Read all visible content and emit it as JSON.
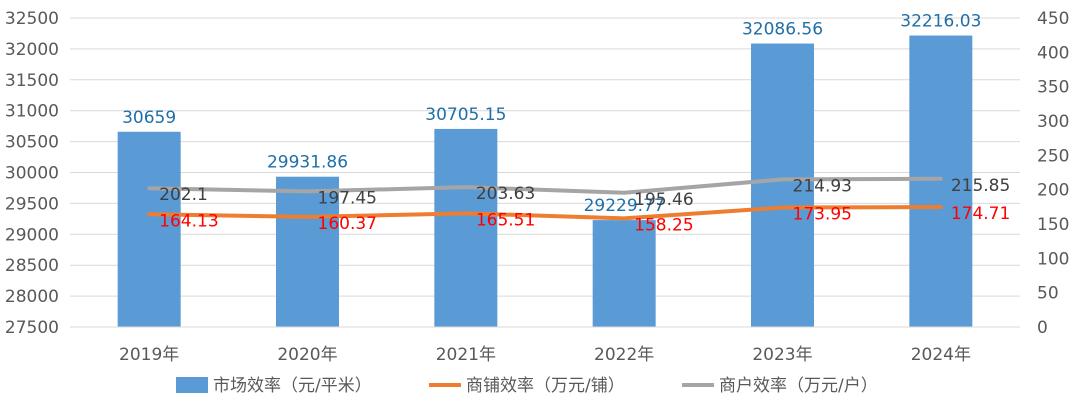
{
  "chart_data": {
    "type": "bar",
    "categories": [
      "2019年",
      "2020年",
      "2021年",
      "2022年",
      "2023年",
      "2024年"
    ],
    "series": [
      {
        "name": "市场效率（元/平米）",
        "kind": "bar",
        "axis": "left",
        "values": [
          30659,
          29931.86,
          30705.15,
          29229.77,
          32086.56,
          32216.03
        ],
        "labels": [
          "30659",
          "29931.86",
          "30705.15",
          "29229.77",
          "32086.56",
          "32216.03"
        ],
        "color": "#5b9bd5",
        "label_color": "#1f6fa8"
      },
      {
        "name": "商铺效率（万元/铺）",
        "kind": "line",
        "axis": "right",
        "values": [
          164.13,
          160.37,
          165.51,
          158.25,
          173.95,
          174.71
        ],
        "labels": [
          "164.13",
          "160.37",
          "165.51",
          "158.25",
          "173.95",
          "174.71"
        ],
        "color": "#ed7d31",
        "label_color": "#ff0000"
      },
      {
        "name": "商户效率（万元/户）",
        "kind": "line",
        "axis": "right",
        "values": [
          202.1,
          197.45,
          203.63,
          195.46,
          214.93,
          215.85
        ],
        "labels": [
          "202.1",
          "197.45",
          "203.63",
          "195.46",
          "214.93",
          "215.85"
        ],
        "color": "#a5a5a5",
        "label_color": "#404040"
      }
    ],
    "y_left": {
      "ylim": [
        27500,
        32500
      ],
      "ticks": [
        "27500",
        "28000",
        "28500",
        "29000",
        "29500",
        "30000",
        "30500",
        "31000",
        "31500",
        "32000",
        "32500"
      ]
    },
    "y_right": {
      "ylim": [
        0,
        450
      ],
      "ticks": [
        "0",
        "50",
        "100",
        "150",
        "200",
        "250",
        "300",
        "350",
        "400",
        "450"
      ]
    },
    "grid": true,
    "legend_position": "bottom"
  }
}
